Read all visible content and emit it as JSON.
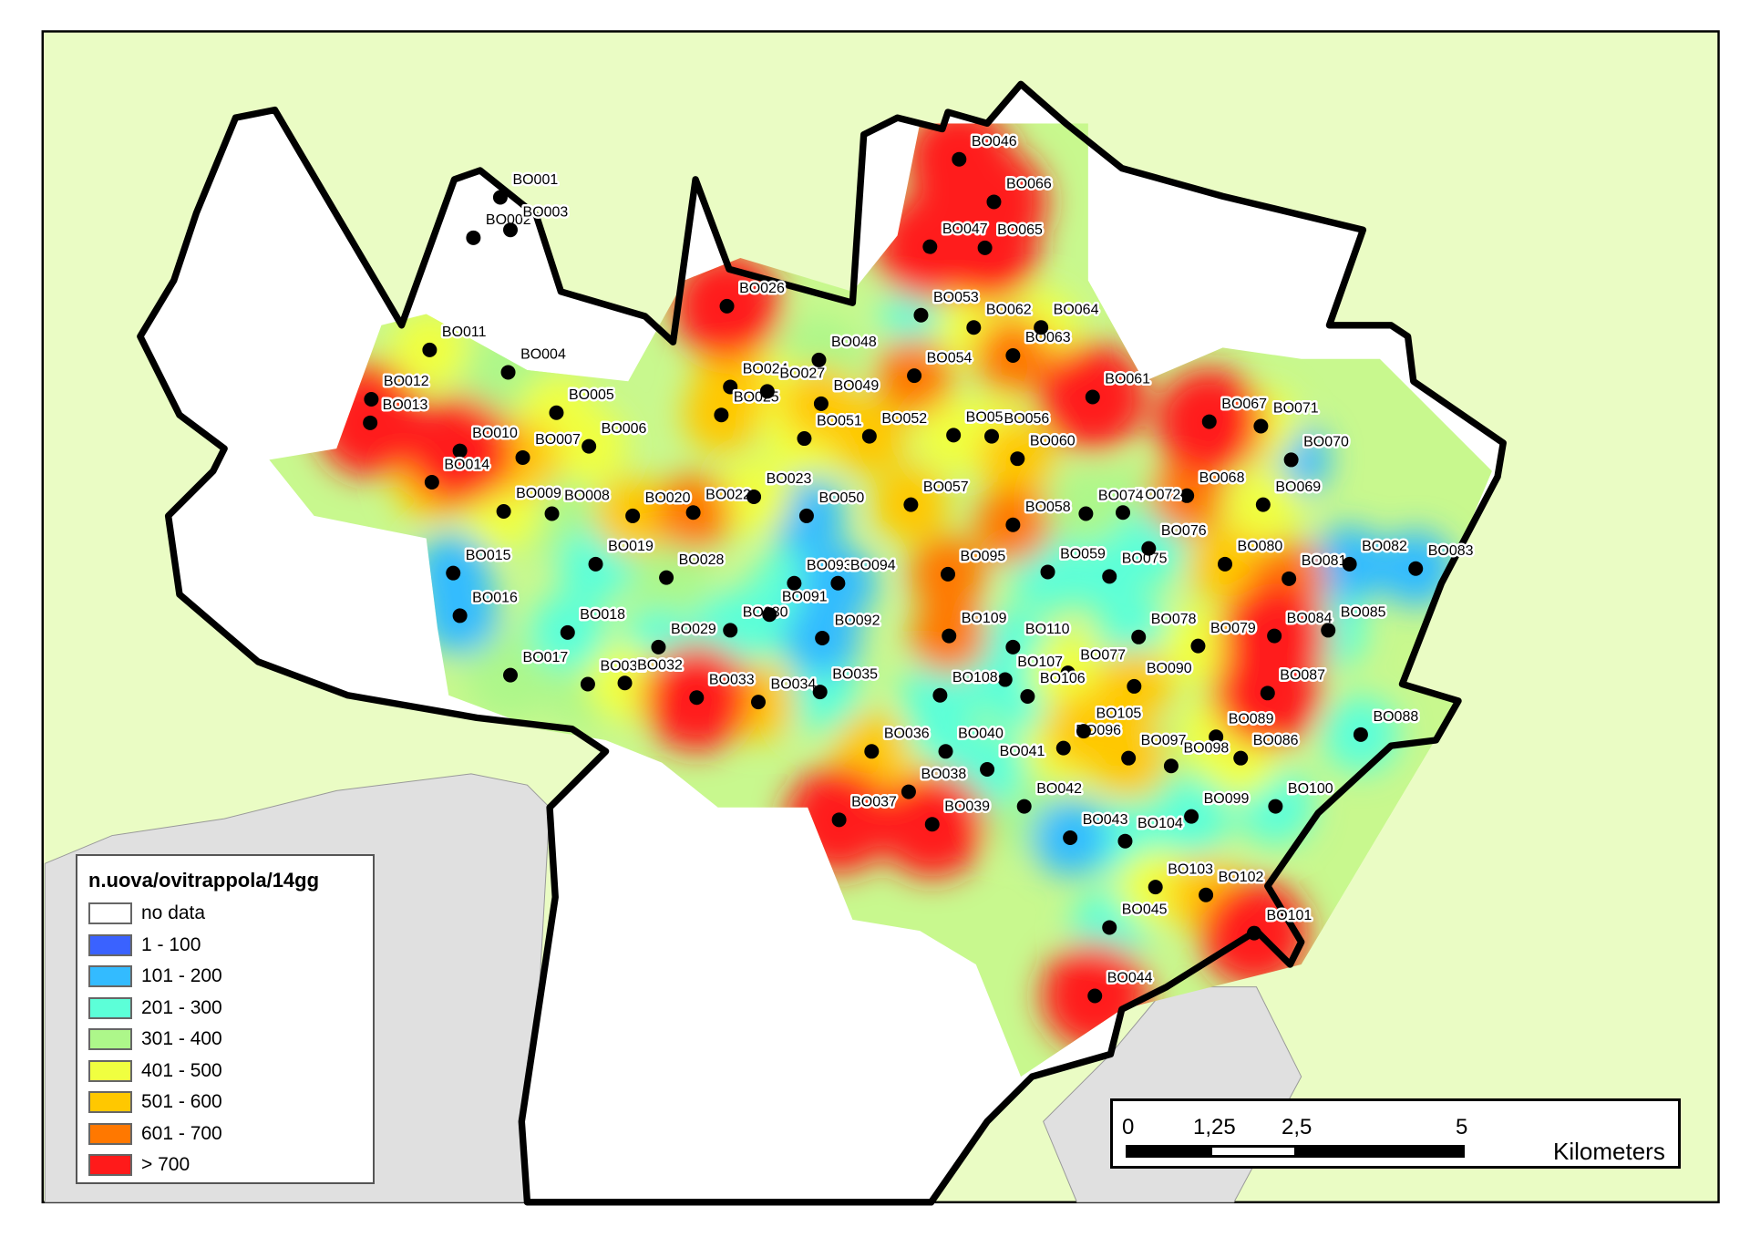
{
  "legend": {
    "title": "n.uova/ovitrappola/14gg",
    "classes": [
      {
        "label": "no data",
        "color": "#ffffff"
      },
      {
        "label": "1 - 100",
        "color": "#3a62ff"
      },
      {
        "label": "101 - 200",
        "color": "#33bbff"
      },
      {
        "label": "201 - 300",
        "color": "#5cffd8"
      },
      {
        "label": "301 - 400",
        "color": "#adf78a"
      },
      {
        "label": "401 - 500",
        "color": "#f0ff40"
      },
      {
        "label": "501 - 600",
        "color": "#ffc800"
      },
      {
        "label": "601 - 700",
        "color": "#ff7800"
      },
      {
        "label": "> 700",
        "color": "#ff1a1a"
      }
    ]
  },
  "scale_bar": {
    "ticks": [
      "0",
      "1,25",
      "2,5",
      "5"
    ],
    "unit": "Kilometers"
  },
  "colors": {
    "background_land": "#eafcc4",
    "water_gray": "#e0e0e0",
    "boundary": "#000000",
    "station_dot": "#000000"
  },
  "stations": [
    {
      "id": "BO001",
      "class": "no data"
    },
    {
      "id": "BO002",
      "class": "no data"
    },
    {
      "id": "BO003",
      "class": "no data"
    },
    {
      "id": "BO004",
      "class": "301 - 400"
    },
    {
      "id": "BO005",
      "class": "401 - 500"
    },
    {
      "id": "BO006",
      "class": "401 - 500"
    },
    {
      "id": "BO007",
      "class": "501 - 600"
    },
    {
      "id": "BO008",
      "class": "301 - 400"
    },
    {
      "id": "BO009",
      "class": "401 - 500"
    },
    {
      "id": "BO010",
      "class": "> 700"
    },
    {
      "id": "BO011",
      "class": "401 - 500"
    },
    {
      "id": "BO012",
      "class": "601 - 700"
    },
    {
      "id": "BO013",
      "class": "> 700"
    },
    {
      "id": "BO014",
      "class": "501 - 600"
    },
    {
      "id": "BO015",
      "class": "101 - 200"
    },
    {
      "id": "BO016",
      "class": "101 - 200"
    },
    {
      "id": "BO017",
      "class": "301 - 400"
    },
    {
      "id": "BO018",
      "class": "201 - 300"
    },
    {
      "id": "BO019",
      "class": "201 - 300"
    },
    {
      "id": "BO020",
      "class": "501 - 600"
    },
    {
      "id": "BO022",
      "class": "601 - 700"
    },
    {
      "id": "BO023",
      "class": "401 - 500"
    },
    {
      "id": "BO024",
      "class": "501 - 600"
    },
    {
      "id": "BO025",
      "class": "501 - 600"
    },
    {
      "id": "BO026",
      "class": "> 700"
    },
    {
      "id": "BO027",
      "class": "401 - 500"
    },
    {
      "id": "BO028",
      "class": "301 - 400"
    },
    {
      "id": "BO029",
      "class": "201 - 300"
    },
    {
      "id": "BO030",
      "class": "201 - 300"
    },
    {
      "id": "BO031",
      "class": "301 - 400"
    },
    {
      "id": "BO032",
      "class": "401 - 500"
    },
    {
      "id": "BO033",
      "class": "> 700"
    },
    {
      "id": "BO034",
      "class": "501 - 600"
    },
    {
      "id": "BO035",
      "class": "201 - 300"
    },
    {
      "id": "BO036",
      "class": "501 - 600"
    },
    {
      "id": "BO037",
      "class": "> 700"
    },
    {
      "id": "BO038",
      "class": "401 - 500"
    },
    {
      "id": "BO039",
      "class": "> 700"
    },
    {
      "id": "BO040",
      "class": "201 - 300"
    },
    {
      "id": "BO041",
      "class": "201 - 300"
    },
    {
      "id": "BO042",
      "class": "301 - 400"
    },
    {
      "id": "BO043",
      "class": "101 - 200"
    },
    {
      "id": "BO044",
      "class": "> 700"
    },
    {
      "id": "BO045",
      "class": "201 - 300"
    },
    {
      "id": "BO046",
      "class": "> 700"
    },
    {
      "id": "BO047",
      "class": "> 700"
    },
    {
      "id": "BO048",
      "class": "301 - 400"
    },
    {
      "id": "BO049",
      "class": "501 - 600"
    },
    {
      "id": "BO050",
      "class": "101 - 200"
    },
    {
      "id": "BO051",
      "class": "401 - 500"
    },
    {
      "id": "BO052",
      "class": "501 - 600"
    },
    {
      "id": "BO053",
      "class": "201 - 300"
    },
    {
      "id": "BO054",
      "class": "601 - 700"
    },
    {
      "id": "BO055",
      "class": "401 - 500"
    },
    {
      "id": "BO056",
      "class": "401 - 500"
    },
    {
      "id": "BO057",
      "class": "501 - 600"
    },
    {
      "id": "BO058",
      "class": "601 - 700"
    },
    {
      "id": "BO059",
      "class": "201 - 300"
    },
    {
      "id": "BO060",
      "class": "501 - 600"
    },
    {
      "id": "BO061",
      "class": "> 700"
    },
    {
      "id": "BO062",
      "class": "401 - 500"
    },
    {
      "id": "BO063",
      "class": "601 - 700"
    },
    {
      "id": "BO064",
      "class": "401 - 500"
    },
    {
      "id": "BO065",
      "class": "> 700"
    },
    {
      "id": "BO066",
      "class": "> 700"
    },
    {
      "id": "BO067",
      "class": "> 700"
    },
    {
      "id": "BO068",
      "class": "601 - 700"
    },
    {
      "id": "BO069",
      "class": "401 - 500"
    },
    {
      "id": "BO070",
      "class": "101 - 200"
    },
    {
      "id": "BO071",
      "class": "401 - 500"
    },
    {
      "id": "BO072",
      "class": "301 - 400"
    },
    {
      "id": "BO074",
      "class": "301 - 400"
    },
    {
      "id": "BO075",
      "class": "201 - 300"
    },
    {
      "id": "BO076",
      "class": "201 - 300"
    },
    {
      "id": "BO077",
      "class": "401 - 500"
    },
    {
      "id": "BO078",
      "class": "201 - 300"
    },
    {
      "id": "BO079",
      "class": "401 - 500"
    },
    {
      "id": "BO080",
      "class": "501 - 600"
    },
    {
      "id": "BO081",
      "class": "601 - 700"
    },
    {
      "id": "BO082",
      "class": "101 - 200"
    },
    {
      "id": "BO083",
      "class": "101 - 200"
    },
    {
      "id": "BO084",
      "class": "> 700"
    },
    {
      "id": "BO085",
      "class": "201 - 300"
    },
    {
      "id": "BO086",
      "class": "401 - 500"
    },
    {
      "id": "BO087",
      "class": "> 700"
    },
    {
      "id": "BO088",
      "class": "201 - 300"
    },
    {
      "id": "BO089",
      "class": "401 - 500"
    },
    {
      "id": "BO090",
      "class": "501 - 600"
    },
    {
      "id": "BO091",
      "class": "201 - 300"
    },
    {
      "id": "BO092",
      "class": "101 - 200"
    },
    {
      "id": "BO093",
      "class": "201 - 300"
    },
    {
      "id": "BO094",
      "class": "101 - 200"
    },
    {
      "id": "BO095",
      "class": "601 - 700"
    },
    {
      "id": "BO096",
      "class": "401 - 500"
    },
    {
      "id": "BO097",
      "class": "501 - 600"
    },
    {
      "id": "BO098",
      "class": "301 - 400"
    },
    {
      "id": "BO099",
      "class": "201 - 300"
    },
    {
      "id": "BO100",
      "class": "201 - 300"
    },
    {
      "id": "BO101",
      "class": "> 700"
    },
    {
      "id": "BO102",
      "class": "501 - 600"
    },
    {
      "id": "BO103",
      "class": "401 - 500"
    },
    {
      "id": "BO104",
      "class": "201 - 300"
    },
    {
      "id": "BO105",
      "class": "501 - 600"
    },
    {
      "id": "BO106",
      "class": "201 - 300"
    },
    {
      "id": "BO107",
      "class": "201 - 300"
    },
    {
      "id": "BO108",
      "class": "201 - 300"
    },
    {
      "id": "BO109",
      "class": "601 - 700"
    },
    {
      "id": "BO110",
      "class": "201 - 300"
    }
  ]
}
